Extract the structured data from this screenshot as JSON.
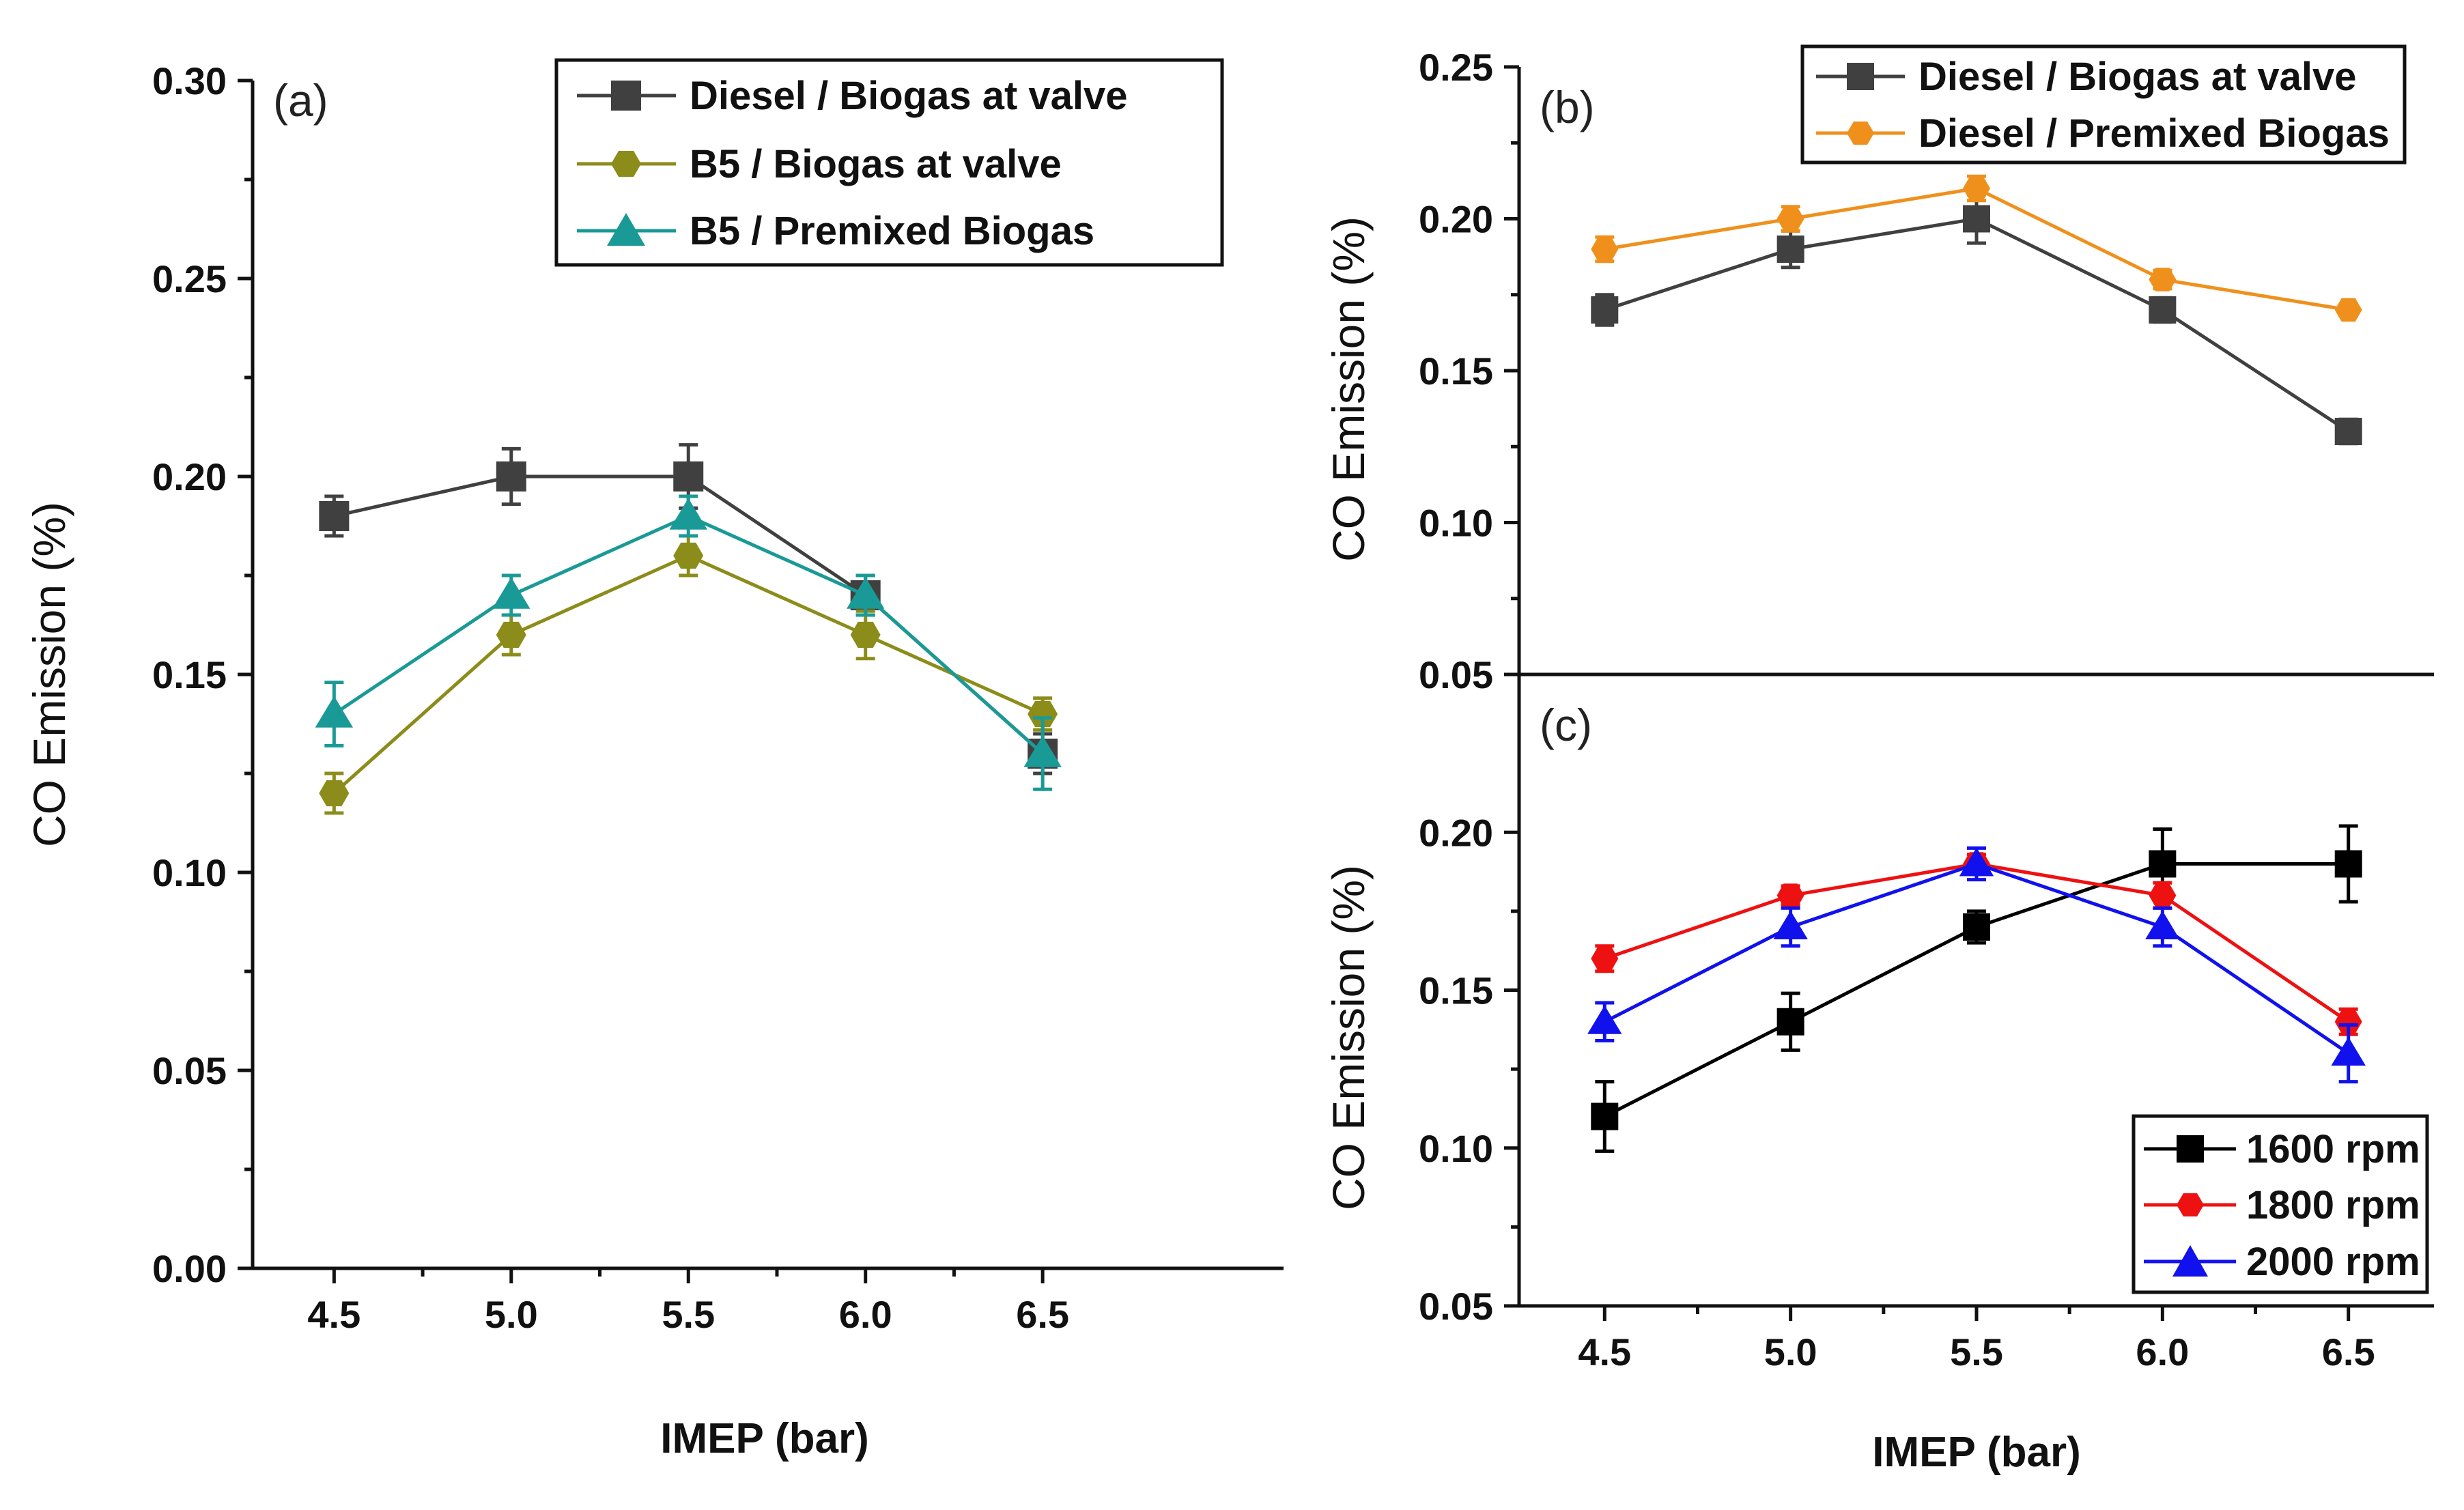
{
  "colors": {
    "gray": "#404040",
    "olive": "#8c8c1a",
    "teal": "#1a9a96",
    "orange": "#f0901c",
    "black": "#000000",
    "red": "#ee1111",
    "blue": "#1111ee"
  },
  "chart_data": [
    {
      "id": "a",
      "type": "line",
      "panel_label": "(a)",
      "xlabel": "IMEP (bar)",
      "ylabel": "CO Emission (%)",
      "x": [
        4.5,
        5.0,
        5.5,
        6.0,
        6.5
      ],
      "xticks": [
        "4.5",
        "5.0",
        "5.5",
        "6.0",
        "6.5"
      ],
      "ylim": [
        0.0,
        0.3
      ],
      "yticks": [
        "0.00",
        "0.05",
        "0.10",
        "0.15",
        "0.20",
        "0.25",
        "0.30"
      ],
      "legend_position": "top-right",
      "series": [
        {
          "name": "Diesel / Biogas at valve",
          "color": "#404040",
          "marker": "square",
          "values": [
            0.19,
            0.2,
            0.2,
            0.17,
            0.13
          ],
          "errors": [
            0.005,
            0.007,
            0.008,
            0.005,
            0.005
          ]
        },
        {
          "name": "B5 / Biogas at valve",
          "color": "#8c8c1a",
          "marker": "hexagon",
          "values": [
            0.12,
            0.16,
            0.18,
            0.16,
            0.14
          ],
          "errors": [
            0.005,
            0.005,
            0.005,
            0.006,
            0.004
          ]
        },
        {
          "name": "B5 / Premixed Biogas",
          "color": "#1a9a96",
          "marker": "triangle",
          "values": [
            0.14,
            0.17,
            0.19,
            0.17,
            0.13
          ],
          "errors": [
            0.008,
            0.005,
            0.005,
            0.005,
            0.009
          ]
        }
      ]
    },
    {
      "id": "b",
      "type": "line",
      "panel_label": "(b)",
      "xlabel": "",
      "ylabel": "CO Emission (%)",
      "x": [
        4.5,
        5.0,
        5.5,
        6.0,
        6.5
      ],
      "xticks": [],
      "ylim": [
        0.05,
        0.25
      ],
      "yticks": [
        "0.05",
        "0.10",
        "0.15",
        "0.20",
        "0.25"
      ],
      "legend_position": "top-right",
      "series": [
        {
          "name": "Diesel / Biogas at valve",
          "color": "#404040",
          "marker": "square",
          "values": [
            0.17,
            0.19,
            0.2,
            0.17,
            0.13
          ],
          "errors": [
            0.005,
            0.006,
            0.008,
            0.004,
            0.004
          ]
        },
        {
          "name": "Diesel / Premixed Biogas",
          "color": "#f0901c",
          "marker": "hexagon",
          "values": [
            0.19,
            0.2,
            0.21,
            0.18,
            0.17
          ],
          "errors": [
            0.004,
            0.004,
            0.004,
            0.003,
            0.002
          ]
        }
      ]
    },
    {
      "id": "c",
      "type": "line",
      "panel_label": "(c)",
      "xlabel": "IMEP (bar)",
      "ylabel": "CO Emission (%)",
      "x": [
        4.5,
        5.0,
        5.5,
        6.0,
        6.5
      ],
      "xticks": [
        "4.5",
        "5.0",
        "5.5",
        "6.0",
        "6.5"
      ],
      "ylim": [
        0.05,
        0.25
      ],
      "yticks": [
        "0.05",
        "0.10",
        "0.15",
        "0.20"
      ],
      "legend_position": "bottom-right",
      "series": [
        {
          "name": "1600 rpm",
          "color": "#000000",
          "marker": "square",
          "values": [
            0.11,
            0.14,
            0.17,
            0.19,
            0.19
          ],
          "errors": [
            0.011,
            0.009,
            0.005,
            0.011,
            0.012
          ]
        },
        {
          "name": "1800 rpm",
          "color": "#ee1111",
          "marker": "hexagon",
          "values": [
            0.16,
            0.18,
            0.19,
            0.18,
            0.14
          ],
          "errors": [
            0.004,
            0.003,
            0.003,
            0.004,
            0.004
          ]
        },
        {
          "name": "2000 rpm",
          "color": "#1111ee",
          "marker": "triangle",
          "values": [
            0.14,
            0.17,
            0.19,
            0.17,
            0.13
          ],
          "errors": [
            0.006,
            0.006,
            0.005,
            0.006,
            0.009
          ]
        }
      ]
    }
  ]
}
